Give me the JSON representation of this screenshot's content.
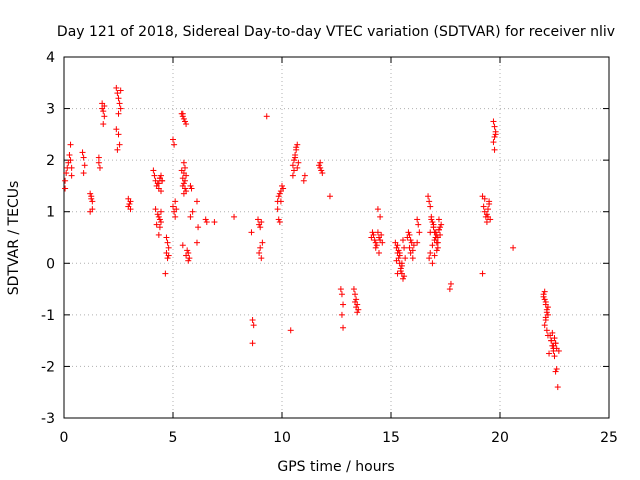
{
  "chart_data": {
    "type": "scatter",
    "title": "Day 121 of 2018, Sidereal Day-to-day VTEC variation (SDTVAR) for receiver nliv",
    "xlabel": "GPS time / hours",
    "ylabel": "SDTVAR / TECUs",
    "xlim": [
      0,
      25
    ],
    "ylim": [
      -3,
      4
    ],
    "xticks": [
      0,
      5,
      10,
      15,
      20,
      25
    ],
    "yticks": [
      -3,
      -2,
      -1,
      0,
      1,
      2,
      3,
      4
    ],
    "xtick_labels": [
      "0",
      "5",
      "10",
      "15",
      "20",
      "25"
    ],
    "ytick_labels": [
      "-3",
      "-2",
      "-1",
      "0",
      "1",
      "2",
      "3",
      "4"
    ],
    "grid": true,
    "marker": "+",
    "color": "#ff0000",
    "series": [
      {
        "name": "SDTVAR",
        "x": [
          0.05,
          0.1,
          0.15,
          0.2,
          0.25,
          0.3,
          0.35,
          0.05,
          0.3,
          0.35,
          0.85,
          0.9,
          0.95,
          0.9,
          1.2,
          1.25,
          1.3,
          1.2,
          1.3,
          1.25,
          1.6,
          1.65,
          1.6,
          1.75,
          1.8,
          1.85,
          1.8,
          1.75,
          1.85,
          2.4,
          2.45,
          2.5,
          2.55,
          2.6,
          2.5,
          2.55,
          2.45,
          2.4,
          2.5,
          2.6,
          2.95,
          3.0,
          3.05,
          2.95,
          3.05,
          4.1,
          4.15,
          4.2,
          4.25,
          4.3,
          4.35,
          4.4,
          4.45,
          4.5,
          4.2,
          4.3,
          4.4,
          4.25,
          4.35,
          4.45,
          4.35,
          4.4,
          4.45,
          4.5,
          4.4,
          4.35,
          4.45,
          4.7,
          4.75,
          4.8,
          4.7,
          4.75,
          4.8,
          4.65,
          5.0,
          5.05,
          5.1,
          5.0,
          5.05,
          5.1,
          5.15,
          5.4,
          5.45,
          5.5,
          5.55,
          5.6,
          5.45,
          5.5,
          5.55,
          5.4,
          5.5,
          5.6,
          5.45,
          5.55,
          5.5,
          5.45,
          5.55,
          5.6,
          5.5,
          5.45,
          5.65,
          5.7,
          5.6,
          5.75,
          5.7,
          5.8,
          5.85,
          5.9,
          5.8,
          6.1,
          6.15,
          6.1,
          6.5,
          6.55,
          6.9,
          7.8,
          8.6,
          8.65,
          8.7,
          8.65,
          8.9,
          8.95,
          9.0,
          9.05,
          9.1,
          9.0,
          8.95,
          9.05,
          9.3,
          9.8,
          9.85,
          9.9,
          9.95,
          10.0,
          10.05,
          9.85,
          9.95,
          9.9,
          9.8,
          10.5,
          10.55,
          10.6,
          10.65,
          10.7,
          10.75,
          10.6,
          10.7,
          10.55,
          10.65,
          10.5,
          10.4,
          11.0,
          11.05,
          11.7,
          11.75,
          11.8,
          11.85,
          11.75,
          12.2,
          12.7,
          12.75,
          12.8,
          12.75,
          12.8,
          13.3,
          13.35,
          13.4,
          13.45,
          13.5,
          13.35,
          13.4,
          13.45,
          14.1,
          14.15,
          14.2,
          14.25,
          14.3,
          14.35,
          14.4,
          14.45,
          14.5,
          14.55,
          14.6,
          14.4,
          14.5,
          14.3,
          14.45,
          15.2,
          15.25,
          15.3,
          15.35,
          15.4,
          15.45,
          15.5,
          15.55,
          15.3,
          15.4,
          15.5,
          15.6,
          15.25,
          15.35,
          15.45,
          15.55,
          15.65,
          15.4,
          15.5,
          15.3,
          15.6,
          15.75,
          15.8,
          15.85,
          15.9,
          15.95,
          16.0,
          15.85,
          15.9,
          16.0,
          16.05,
          16.2,
          16.25,
          16.3,
          16.2,
          16.7,
          16.75,
          16.8,
          16.85,
          16.9,
          16.95,
          17.0,
          17.05,
          17.1,
          17.15,
          17.2,
          17.25,
          17.3,
          16.8,
          16.9,
          17.0,
          17.1,
          17.2,
          16.85,
          16.95,
          17.05,
          17.15,
          17.25,
          16.75,
          16.9,
          17.0,
          17.1,
          17.2,
          16.8,
          16.95,
          17.05,
          17.15,
          17.7,
          17.75,
          19.2,
          19.25,
          19.3,
          19.35,
          19.4,
          19.45,
          19.5,
          19.55,
          19.4,
          19.5,
          19.3,
          19.45,
          19.2,
          19.7,
          19.75,
          19.8,
          19.75,
          19.7,
          19.8,
          19.75,
          20.6,
          22.0,
          22.05,
          22.1,
          22.15,
          22.2,
          22.1,
          22.05,
          22.15,
          22.0,
          22.1,
          22.2,
          22.05,
          22.15,
          22.1,
          22.2,
          22.25,
          22.3,
          22.35,
          22.4,
          22.45,
          22.5,
          22.55,
          22.6,
          22.4,
          22.5,
          22.35,
          22.45,
          22.55,
          22.5,
          22.45,
          22.6,
          22.55,
          22.65,
          22.7
        ],
        "y": [
          1.45,
          1.75,
          1.85,
          1.95,
          2.1,
          2.3,
          1.7,
          1.6,
          2.0,
          1.85,
          2.15,
          2.05,
          1.9,
          1.75,
          1.35,
          1.25,
          1.2,
          1.0,
          1.05,
          1.3,
          1.95,
          1.85,
          2.05,
          3.1,
          2.95,
          2.85,
          2.7,
          3.0,
          3.05,
          3.4,
          3.3,
          3.2,
          3.1,
          3.0,
          2.5,
          2.3,
          2.2,
          2.6,
          2.9,
          3.35,
          1.25,
          1.15,
          1.05,
          1.1,
          1.2,
          1.8,
          1.7,
          1.6,
          1.5,
          1.55,
          1.45,
          1.65,
          1.4,
          1.6,
          1.05,
          0.95,
          0.85,
          0.75,
          0.9,
          1.0,
          1.55,
          1.65,
          1.7,
          1.6,
          0.7,
          0.55,
          0.8,
          0.5,
          0.4,
          0.3,
          0.2,
          0.1,
          0.15,
          -0.2,
          2.4,
          2.3,
          1.2,
          1.1,
          1.0,
          0.9,
          1.05,
          2.9,
          2.85,
          2.8,
          2.75,
          2.7,
          2.9,
          1.95,
          1.85,
          1.8,
          1.75,
          1.7,
          1.65,
          1.6,
          1.55,
          1.5,
          1.45,
          1.4,
          1.35,
          0.35,
          0.25,
          0.2,
          0.15,
          0.1,
          0.05,
          1.5,
          1.45,
          1.0,
          0.9,
          1.2,
          0.7,
          0.4,
          0.85,
          0.8,
          0.8,
          0.9,
          0.6,
          -1.1,
          -1.2,
          -1.55,
          0.85,
          0.75,
          0.7,
          0.8,
          0.4,
          0.3,
          0.2,
          0.1,
          2.85,
          1.2,
          1.3,
          1.35,
          1.4,
          1.5,
          1.45,
          0.85,
          1.2,
          0.8,
          1.05,
          1.9,
          2.0,
          2.1,
          2.2,
          2.3,
          1.95,
          2.05,
          1.85,
          1.8,
          2.25,
          1.7,
          -1.3,
          1.6,
          1.7,
          1.9,
          1.85,
          1.8,
          1.75,
          1.95,
          1.3,
          -0.5,
          -0.6,
          -0.8,
          -1.0,
          -1.25,
          -0.5,
          -0.6,
          -0.7,
          -0.8,
          -0.9,
          -0.75,
          -0.85,
          -0.95,
          0.5,
          0.6,
          0.55,
          0.45,
          0.4,
          0.35,
          0.6,
          0.5,
          0.45,
          0.55,
          0.4,
          1.05,
          0.9,
          0.3,
          0.2,
          0.4,
          0.3,
          0.2,
          0.1,
          0.0,
          -0.1,
          -0.2,
          -0.3,
          0.35,
          0.15,
          -0.05,
          -0.25,
          0.05,
          0.25,
          -0.15,
          0.45,
          0.1,
          0.2,
          0.0,
          -0.2,
          0.3,
          0.5,
          0.6,
          0.3,
          0.2,
          0.4,
          0.1,
          0.55,
          0.45,
          0.25,
          0.35,
          0.85,
          0.75,
          0.6,
          0.4,
          1.3,
          1.2,
          1.1,
          0.9,
          0.8,
          0.7,
          0.6,
          0.5,
          0.4,
          0.3,
          0.65,
          0.55,
          0.75,
          0.2,
          0.35,
          0.45,
          0.55,
          0.65,
          0.85,
          0.75,
          0.6,
          0.5,
          0.7,
          0.1,
          0.0,
          0.15,
          0.25,
          0.85,
          0.6,
          0.7,
          0.5,
          0.4,
          -0.5,
          -0.4,
          1.3,
          1.1,
          1.0,
          0.9,
          0.95,
          1.05,
          1.15,
          0.85,
          0.8,
          1.2,
          1.25,
          0.9,
          -0.2,
          2.75,
          2.65,
          2.55,
          2.45,
          2.35,
          2.5,
          2.2,
          0.3,
          -0.6,
          -0.7,
          -0.8,
          -0.9,
          -1.0,
          -1.1,
          -1.2,
          -1.3,
          -0.65,
          -0.75,
          -0.85,
          -0.55,
          -0.95,
          -1.05,
          -1.4,
          -1.75,
          -1.4,
          -1.5,
          -1.6,
          -1.7,
          -1.45,
          -1.55,
          -1.65,
          -1.35,
          -1.8,
          -1.5,
          -1.6,
          -1.55,
          -1.45,
          -1.65,
          -2.05,
          -2.1,
          -2.4,
          -1.7
        ]
      }
    ]
  }
}
